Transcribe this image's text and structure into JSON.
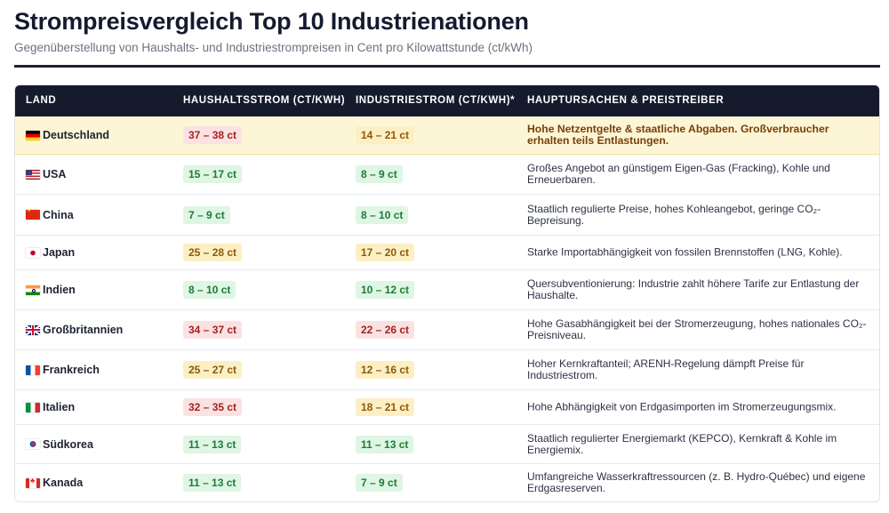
{
  "header": {
    "title": "Strompreisvergleich Top 10 Industrienationen",
    "subtitle": "Gegenüberstellung von Haushalts- und Industriestrompreisen in Cent pro Kilowattstunde (ct/kWh)"
  },
  "table": {
    "columns": [
      "LAND",
      "HAUSHALTSSTROM (CT/KWH)",
      "INDUSTRIESTROM (CT/KWH)*",
      "HAUPTURSACHEN & PREISTREIBER"
    ],
    "rows": [
      {
        "flag_icon": "germany-flag-icon",
        "country": "Deutschland",
        "household": "37 – 38 ct",
        "household_level": "red",
        "industry": "14 – 21 ct",
        "industry_level": "yellow",
        "reason": "Hohe Netzentgelte & staatliche Abgaben. Großverbraucher erhalten teils Entlastungen.",
        "highlighted": true
      },
      {
        "flag_icon": "usa-flag-icon",
        "country": "USA",
        "household": "15 – 17 ct",
        "household_level": "green",
        "industry": "8 – 9 ct",
        "industry_level": "green",
        "reason": "Großes Angebot an günstigem Eigen-Gas (Fracking), Kohle und Erneuerbaren."
      },
      {
        "flag_icon": "china-flag-icon",
        "country": "China",
        "household": "7 – 9 ct",
        "household_level": "green",
        "industry": "8 – 10 ct",
        "industry_level": "green",
        "reason": "Staatlich regulierte Preise, hohes Kohleangebot, geringe CO₂-Bepreisung."
      },
      {
        "flag_icon": "japan-flag-icon",
        "country": "Japan",
        "household": "25 – 28 ct",
        "household_level": "yellow",
        "industry": "17 – 20 ct",
        "industry_level": "yellow",
        "reason": "Starke Importabhängigkeit von fossilen Brennstoffen (LNG, Kohle)."
      },
      {
        "flag_icon": "india-flag-icon",
        "country": "Indien",
        "household": "8 – 10 ct",
        "household_level": "green",
        "industry": "10 – 12 ct",
        "industry_level": "green",
        "reason": "Quersubventionierung: Industrie zahlt höhere Tarife zur Entlastung der Haushalte."
      },
      {
        "flag_icon": "uk-flag-icon",
        "country": "Großbritannien",
        "household": "34 – 37 ct",
        "household_level": "red",
        "industry": "22 – 26 ct",
        "industry_level": "red",
        "reason": "Hohe Gasabhängigkeit bei der Stromerzeugung, hohes nationales CO₂-Preisniveau."
      },
      {
        "flag_icon": "france-flag-icon",
        "country": "Frankreich",
        "household": "25 – 27 ct",
        "household_level": "yellow",
        "industry": "12 – 16 ct",
        "industry_level": "yellow",
        "reason": "Hoher Kernkraftanteil; ARENH-Regelung dämpft Preise für Industriestrom."
      },
      {
        "flag_icon": "italy-flag-icon",
        "country": "Italien",
        "household": "32 – 35 ct",
        "household_level": "red",
        "industry": "18 – 21 ct",
        "industry_level": "yellow",
        "reason": "Hohe Abhängigkeit von Erdgasimporten im Stromerzeugungsmix."
      },
      {
        "flag_icon": "south-korea-flag-icon",
        "country": "Südkorea",
        "household": "11 – 13 ct",
        "household_level": "green",
        "industry": "11 – 13 ct",
        "industry_level": "green",
        "reason": "Staatlich regulierter Energiemarkt (KEPCO), Kernkraft & Kohle im Energiemix."
      },
      {
        "flag_icon": "canada-flag-icon",
        "country": "Kanada",
        "household": "11 – 13 ct",
        "household_level": "green",
        "industry": "7 – 9 ct",
        "industry_level": "green",
        "reason": "Umfangreiche Wasserkraftressourcen (z. B. Hydro-Québec) und eigene Erdgasreserven."
      }
    ]
  },
  "colors": {
    "header_bg": "#151a2d",
    "highlight_row": "#fdf6d6",
    "badge_red": "#fbe2e2",
    "badge_yellow": "#fdefc4",
    "badge_green": "#def6e3"
  }
}
